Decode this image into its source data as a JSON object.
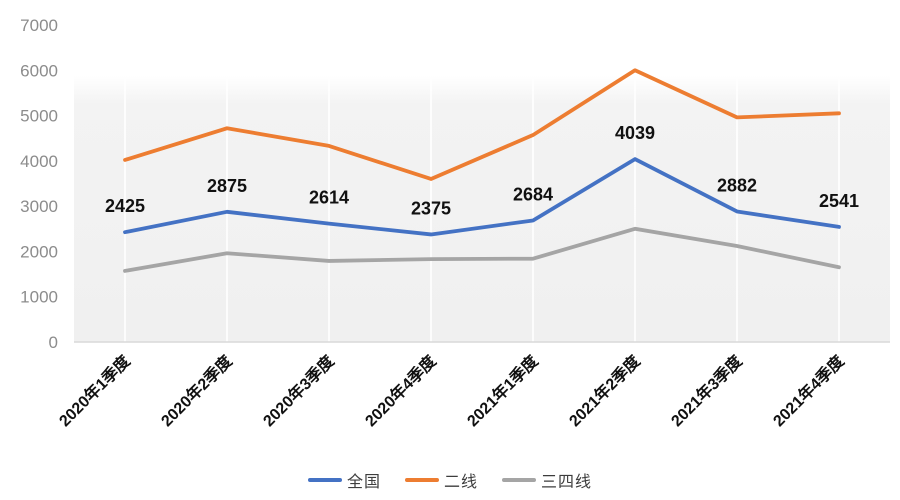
{
  "chart_data": {
    "type": "line",
    "title": "",
    "categories": [
      "2020年1季度",
      "2020年2季度",
      "2020年3季度",
      "2020年4季度",
      "2021年1季度",
      "2021年2季度",
      "2021年3季度",
      "2021年4季度"
    ],
    "series": [
      {
        "name": "全国",
        "color": "#4472C4",
        "values": [
          2425,
          2875,
          2614,
          2375,
          2684,
          4039,
          2882,
          2541
        ],
        "show_data_labels": true
      },
      {
        "name": "二线",
        "color": "#ED7D31",
        "values": [
          4020,
          4720,
          4330,
          3600,
          4570,
          6000,
          4960,
          5050
        ],
        "show_data_labels": false
      },
      {
        "name": "三四线",
        "color": "#A5A5A5",
        "values": [
          1570,
          1960,
          1790,
          1830,
          1840,
          2500,
          2120,
          1650
        ],
        "show_data_labels": false
      }
    ],
    "data_labels": [
      "2425",
      "2875",
      "2614",
      "2375",
      "2684",
      "4039",
      "2882",
      "2541"
    ],
    "y_ticks": [
      0,
      1000,
      2000,
      3000,
      4000,
      5000,
      6000,
      7000
    ],
    "ylim": [
      0,
      7000
    ],
    "x_label_rotation": -45,
    "legend_position": "bottom",
    "grid": "vertical-only",
    "colors": {
      "axis_label": "#8c8c8c",
      "data_label": "#111111",
      "x_label": "#111111",
      "baseline": "#d9d9d9",
      "gridline": "#ffffff",
      "plot_bg_top": "#ffffff",
      "plot_bg_bottom": "#f0f0f0"
    }
  }
}
